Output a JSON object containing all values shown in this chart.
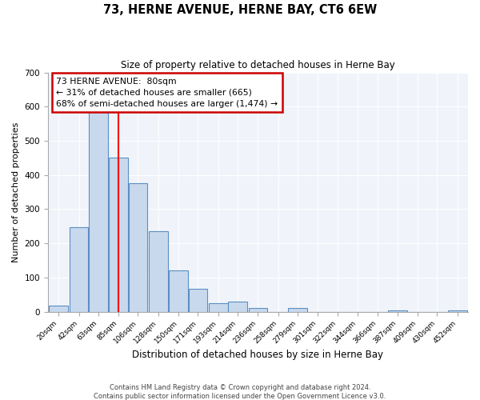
{
  "title": "73, HERNE AVENUE, HERNE BAY, CT6 6EW",
  "subtitle": "Size of property relative to detached houses in Herne Bay",
  "xlabel": "Distribution of detached houses by size in Herne Bay",
  "ylabel": "Number of detached properties",
  "bin_labels": [
    "20sqm",
    "42sqm",
    "63sqm",
    "85sqm",
    "106sqm",
    "128sqm",
    "150sqm",
    "171sqm",
    "193sqm",
    "214sqm",
    "236sqm",
    "258sqm",
    "279sqm",
    "301sqm",
    "322sqm",
    "344sqm",
    "366sqm",
    "387sqm",
    "409sqm",
    "430sqm",
    "452sqm"
  ],
  "bar_values": [
    18,
    247,
    585,
    450,
    375,
    235,
    120,
    67,
    25,
    30,
    12,
    0,
    10,
    0,
    0,
    0,
    0,
    5,
    0,
    0,
    3
  ],
  "bar_color": "#c9d9ed",
  "bar_edge_color": "#5b8fc3",
  "vline_color": "red",
  "annotation_text": "73 HERNE AVENUE:  80sqm\n← 31% of detached houses are smaller (665)\n68% of semi-detached houses are larger (1,474) →",
  "annotation_box_color": "white",
  "annotation_box_edge": "#cc0000",
  "ylim": [
    0,
    700
  ],
  "yticks": [
    0,
    100,
    200,
    300,
    400,
    500,
    600,
    700
  ],
  "footer_line1": "Contains HM Land Registry data © Crown copyright and database right 2024.",
  "footer_line2": "Contains public sector information licensed under the Open Government Licence v3.0.",
  "bin_centers": [
    20,
    42,
    63,
    85,
    106,
    128,
    150,
    171,
    193,
    214,
    236,
    258,
    279,
    301,
    322,
    344,
    366,
    387,
    409,
    430,
    452
  ],
  "bin_width": 21,
  "vline_pos": 85
}
